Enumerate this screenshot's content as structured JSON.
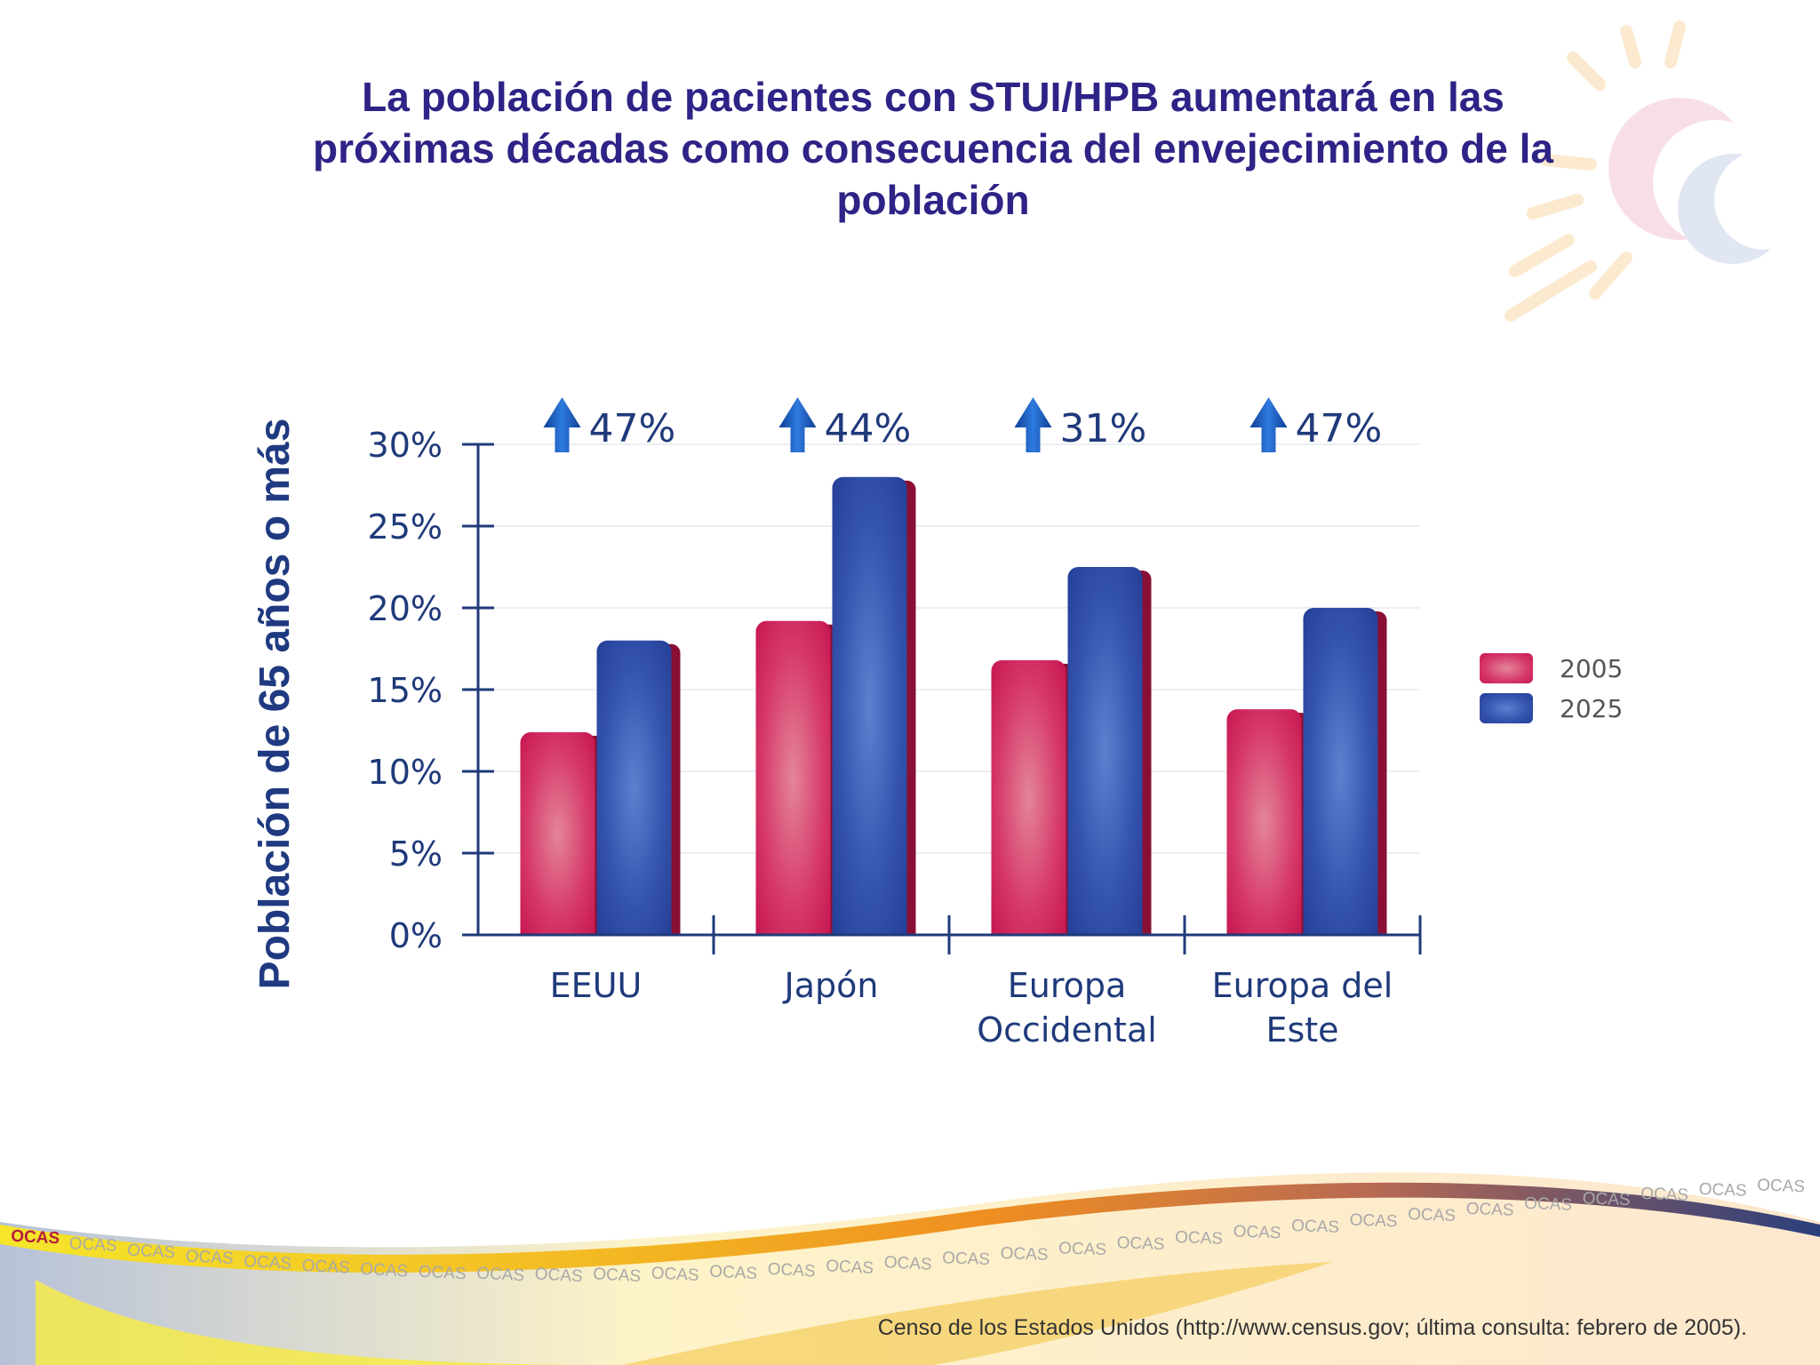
{
  "slide": {
    "title_line1": "La población de pacientes con STUI/HPB aumentará en las",
    "title_line2": "próximas décadas como consecuencia del envejecimiento de la",
    "title_line3": "población",
    "source": "Censo de los Estados Unidos (http://www.census.gov; última consulta: febrero de 2005).",
    "watermark_word": "OCAS"
  },
  "colors": {
    "title": "#2e2386",
    "series_2005": "#cc1a52",
    "series_2025": "#2a44a0",
    "axis": "#1f3a7a",
    "arrow": "#1c55b5"
  },
  "chart_data": {
    "type": "bar",
    "ylabel": "Población de 65 años o más",
    "ylim": [
      0,
      30
    ],
    "yticks": [
      "0%",
      "5%",
      "10%",
      "15%",
      "20%",
      "25%",
      "30%"
    ],
    "grid": true,
    "legend_position": "right",
    "categories": [
      [
        "EEUU"
      ],
      [
        "Japón"
      ],
      [
        "Europa",
        "Occidental"
      ],
      [
        "Europa del",
        "Este"
      ]
    ],
    "series": [
      {
        "name": "2005",
        "values": [
          12.4,
          19.2,
          16.8,
          13.8
        ]
      },
      {
        "name": "2025",
        "values": [
          18.0,
          28.0,
          22.5,
          20.0
        ]
      }
    ],
    "increases": [
      "47%",
      "44%",
      "31%",
      "47%"
    ]
  }
}
